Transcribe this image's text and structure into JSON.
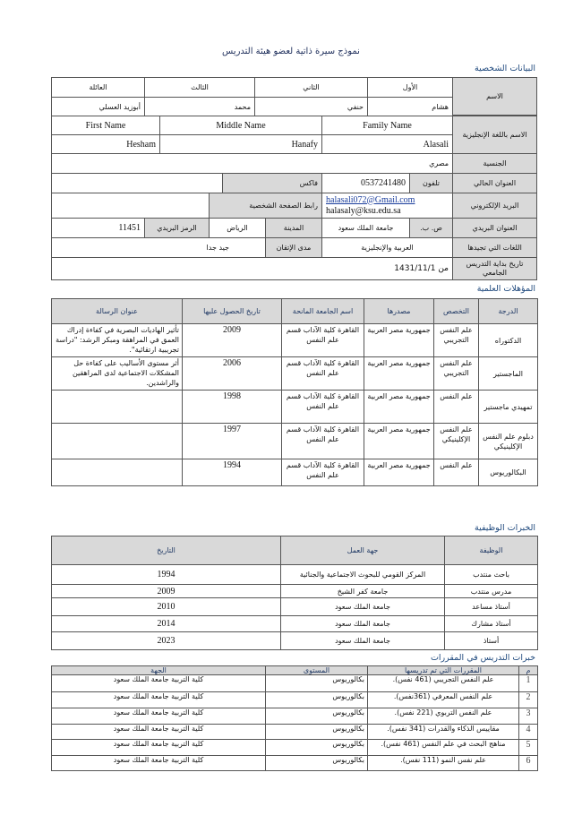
{
  "title": "نموذج سيرة ذاتية لعضو هيئة التدريس",
  "personal": {
    "section_title": "البيانات الشخصية",
    "name_label": "الاسم",
    "name_headers": [
      "الأول",
      "الثاني",
      "الثالث",
      "العائلة"
    ],
    "name_values": [
      "هشام",
      "حنفي",
      "محمد",
      "أبوزيد العسلي"
    ],
    "english_label": "الاسم باللغة الإنجليزية",
    "english_headers": [
      "Family Name",
      "Middle Name",
      "First Name"
    ],
    "english_values": [
      "Alasali",
      "Hanafy",
      "Hesham"
    ],
    "nationality_label": "الجنسية",
    "nationality": "مصري",
    "address_label": "العنوان الحالي",
    "phone_label": "تلفون",
    "phone": "0537241480",
    "fax_label": "فاكس",
    "email_label": "البريد الإلكتروني",
    "email_1": "halasali072@Gmail.com",
    "email_2": "halasaly@ksu.edu.sa",
    "homepage_label": "رابط الصفحة الشخصية",
    "postal_label": "العنوان البريدي",
    "pobox_label": "ص. ب.",
    "pobox": "جامعة الملك سعود",
    "city_label": "المدينة",
    "city": "الرياض",
    "zip_label": "الرمز البريدي",
    "zip": "11451",
    "languages_label": "اللغات التي تجيدها",
    "languages": "العربية والإنجليزية",
    "proficiency_label": "مدى الإتقان",
    "proficiency": "جيد جدا",
    "start_label": "تاريخ بداية التدريس الجامعي",
    "start": "من 1431/11/1"
  },
  "qualifications": {
    "section_title": "المؤهلات العلمية",
    "headers": [
      "الدرجة",
      "التخصص",
      "مصدرها",
      "اسم الجامعة المانحة",
      "تاريخ الحصول عليها",
      "عنوان الرسالة"
    ],
    "rows": [
      [
        "الدكتوراه",
        "علم النفس التجريبي",
        "جمهورية مصر العربية",
        "القاهرة كلية الآداب قسم علم النفس",
        "2009",
        "تأثير الهاديات البصرية في كفاءة إدراك العمق في المراهقة ومبكر الرشد: \"دراسة تجريبية ارتقائية\"."
      ],
      [
        "الماجستير",
        "علم النفس التجريبي",
        "جمهورية مصر العربية",
        "القاهرة كلية الآداب قسم علم النفس",
        "2006",
        "أثر مستوى الأساليب على كفاءة حل المشكلات الاجتماعية لدى المراهقين والراشدين."
      ],
      [
        "تمهيدي ماجستير",
        "علم النفس",
        "جمهورية مصر العربية",
        "القاهرة كلية الآداب قسم علم النفس",
        "1998",
        ""
      ],
      [
        "دبلوم علم النفس الإكلينيكي",
        "علم النفس الإكلينيكي",
        "جمهورية مصر العربية",
        "القاهرة كلية الآداب قسم علم النفس",
        "1997",
        ""
      ],
      [
        "البكالوريوس",
        "علم النفس",
        "جمهورية مصر العربية",
        "القاهرة كلية الآداب قسم علم النفس",
        "1994",
        ""
      ]
    ]
  },
  "experience": {
    "section_title": "الخبرات الوظيفية",
    "headers": [
      "الوظيفة",
      "جهة العمل",
      "التاريخ"
    ],
    "rows": [
      [
        "باحث منتدب",
        "المركز القومي للبحوث الاجتماعية والجنائية",
        "1994"
      ],
      [
        "مدرس منتدب",
        "جامعة كفر الشيخ",
        "2009"
      ],
      [
        "أستاذ مساعد",
        "جامعة الملك سعود",
        "2010"
      ],
      [
        "أستاذ مشارك",
        "جامعة الملك سعود",
        "2014"
      ],
      [
        "أستاذ",
        "جامعة الملك سعود",
        "2023"
      ]
    ]
  },
  "courses": {
    "section_title": "خبرات التدريس في المقررات",
    "headers": [
      "م",
      "المقررات التي تم تدريسها",
      "المستوى",
      "الجهة"
    ],
    "rows": [
      [
        "1",
        "علم النفس التجريبي (461 نفس).",
        "بكالوريوس",
        "كلية التربية جامعة الملك سعود"
      ],
      [
        "2",
        "علم النفس المعرفي (361نفس).",
        "بكالوريوس",
        "كلية التربية جامعة الملك سعود"
      ],
      [
        "3",
        "علم النفس التربوي (221 نفس).",
        "بكالوريوس",
        "كلية التربية جامعة الملك سعود"
      ],
      [
        "4",
        "مقاييس الذكاء والقدرات (341 نفس).",
        "بكالوريوس",
        "كلية التربية جامعة الملك سعود"
      ],
      [
        "5",
        "مناهج البحث في علم النفس (461 نفس).",
        "بكالوريوس",
        "كلية التربية جامعة الملك سعود"
      ],
      [
        "6",
        "علم نفس النمو (111 نفس).",
        "بكالوريوس",
        "كلية التربية جامعة الملك سعود"
      ]
    ]
  }
}
